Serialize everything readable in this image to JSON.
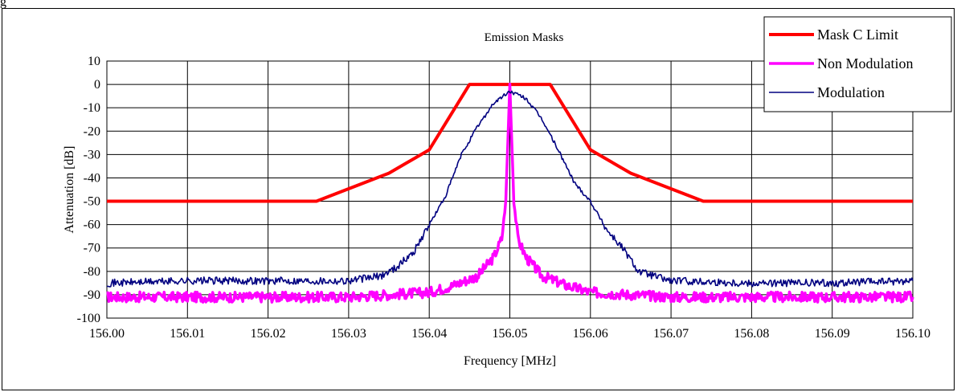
{
  "chart_data": {
    "type": "line",
    "title": "Emission Masks",
    "xlabel": "Frequency [MHz]",
    "ylabel": "Attenuation [dB]",
    "xlim": [
      156.0,
      156.1
    ],
    "ylim": [
      -100,
      10
    ],
    "grid": true,
    "legend_position": "top-right",
    "x_ticks": [
      "156.00",
      "156.01",
      "156.02",
      "156.03",
      "156.04",
      "156.05",
      "156.06",
      "156.07",
      "156.08",
      "156.09",
      "156.10"
    ],
    "y_ticks": [
      "10",
      "0",
      "-10",
      "-20",
      "-30",
      "-40",
      "-50",
      "-60",
      "-70",
      "-80",
      "-90",
      "-100"
    ],
    "series": [
      {
        "name": "Mask C Limit",
        "color": "#ff0000",
        "x": [
          156.0,
          156.026,
          156.035,
          156.04,
          156.045,
          156.055,
          156.06,
          156.065,
          156.074,
          156.1
        ],
        "y": [
          -50,
          -50,
          -38,
          -28,
          0,
          0,
          -28,
          -38,
          -50,
          -50
        ]
      },
      {
        "name": "Non Modulation",
        "color": "#ff00ff",
        "x": [
          156.0,
          156.01,
          156.02,
          156.03,
          156.04,
          156.043,
          156.046,
          156.048,
          156.049,
          156.0495,
          156.05,
          156.0505,
          156.051,
          156.052,
          156.054,
          156.057,
          156.06,
          156.07,
          156.08,
          156.09,
          156.1
        ],
        "y": [
          -91,
          -91,
          -91,
          -91,
          -89,
          -86,
          -82,
          -74,
          -66,
          -50,
          0,
          -50,
          -66,
          -74,
          -82,
          -86,
          -89,
          -91,
          -91,
          -91,
          -91
        ]
      },
      {
        "name": "Modulation",
        "color": "#000080",
        "x": [
          156.0,
          156.01,
          156.02,
          156.03,
          156.034,
          156.036,
          156.038,
          156.04,
          156.042,
          156.044,
          156.046,
          156.048,
          156.05,
          156.052,
          156.054,
          156.056,
          156.058,
          156.06,
          156.062,
          156.064,
          156.066,
          156.07,
          156.08,
          156.09,
          156.1
        ],
        "y": [
          -85,
          -84,
          -84,
          -84,
          -82,
          -78,
          -72,
          -60,
          -48,
          -30,
          -18,
          -8,
          -3,
          -6,
          -15,
          -28,
          -42,
          -50,
          -62,
          -70,
          -80,
          -84,
          -85,
          -85,
          -84
        ]
      }
    ]
  },
  "legend": [
    {
      "name": "Mask C Limit",
      "color": "#ff0000"
    },
    {
      "name": "Non Modulation",
      "color": "#ff00ff"
    },
    {
      "name": "Modulation",
      "color": "#000080"
    }
  ]
}
